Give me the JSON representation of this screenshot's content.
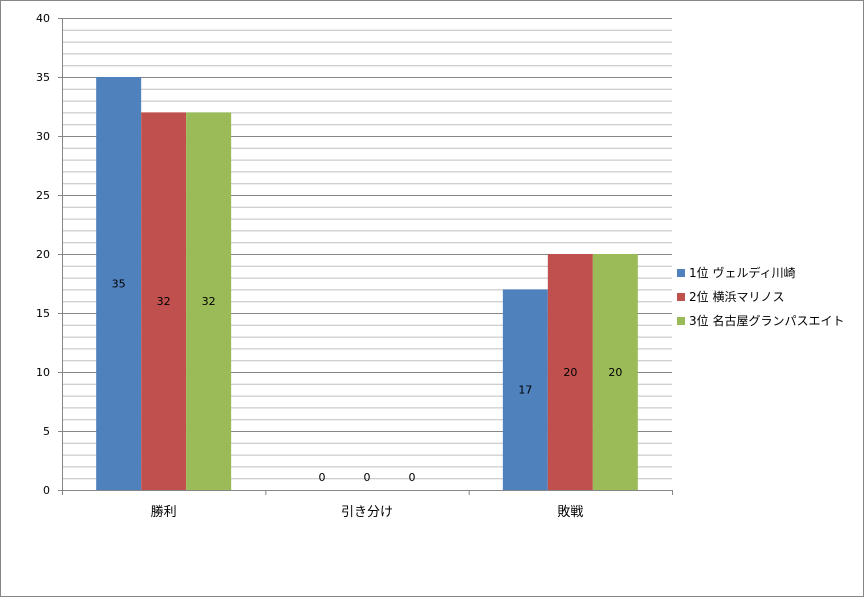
{
  "chart_data": {
    "type": "bar",
    "categories": [
      "勝利",
      "引き分け",
      "敗戦"
    ],
    "series": [
      {
        "name": "1位 ヴェルディ川崎",
        "values": [
          35,
          0,
          17
        ],
        "color": "#4F81BD"
      },
      {
        "name": "2位 横浜マリノス",
        "values": [
          32,
          0,
          20
        ],
        "color": "#C0504D"
      },
      {
        "name": "3位 名古屋グランパスエイト",
        "values": [
          32,
          0,
          20
        ],
        "color": "#9BBB59"
      }
    ],
    "ylim": [
      0,
      40
    ],
    "y_major_ticks": [
      0,
      5,
      10,
      15,
      20,
      25,
      30,
      35,
      40
    ],
    "y_minor_step": 1,
    "grid": true,
    "data_labels": true,
    "legend_position": "right",
    "title": "",
    "xlabel": "",
    "ylabel": ""
  }
}
